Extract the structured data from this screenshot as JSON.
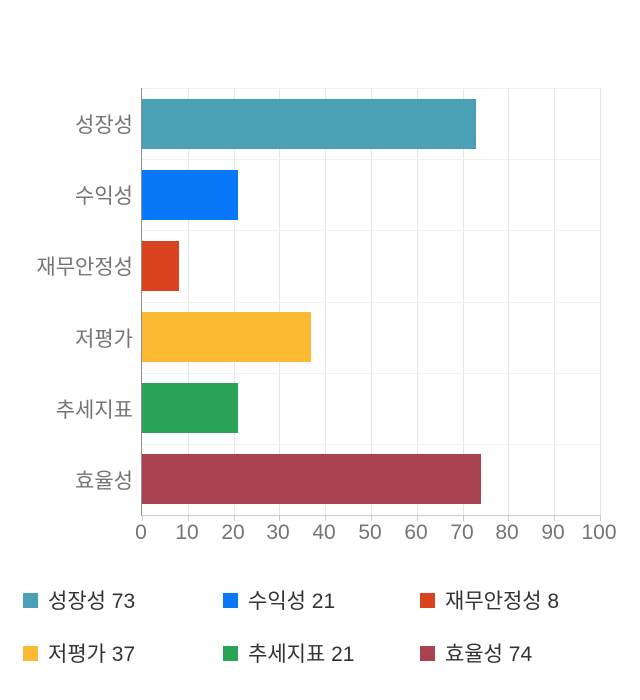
{
  "chart_data": {
    "type": "bar",
    "orientation": "horizontal",
    "title": "",
    "categories": [
      "성장성",
      "수익성",
      "재무안정성",
      "저평가",
      "추세지표",
      "효율성"
    ],
    "values": [
      73,
      21,
      8,
      37,
      21,
      74
    ],
    "bar_colors": [
      "#4AA0B5",
      "#0878F8",
      "#D9431F",
      "#FCB932",
      "#2AA457",
      "#A9424F"
    ],
    "xlim": [
      0,
      100
    ],
    "x_ticks": [
      0,
      10,
      20,
      30,
      40,
      50,
      60,
      70,
      80,
      90,
      100
    ],
    "grid": true,
    "legend_position": "bottom",
    "legend_items": [
      {
        "label": "성장성",
        "value": 73,
        "color": "#4AA0B5",
        "text": "성장성 73"
      },
      {
        "label": "수익성",
        "value": 21,
        "color": "#0878F8",
        "text": "수익성 21"
      },
      {
        "label": "재무안정성",
        "value": 8,
        "color": "#D9431F",
        "text": "재무안정성 8"
      },
      {
        "label": "저평가",
        "value": 37,
        "color": "#FCB932",
        "text": "저평가 37"
      },
      {
        "label": "추세지표",
        "value": 21,
        "color": "#2AA457",
        "text": "추세지표 21"
      },
      {
        "label": "효율성",
        "value": 74,
        "color": "#A9424F",
        "text": "효율성 74"
      }
    ]
  },
  "palette": {
    "background": "#ffffff",
    "axis_label_color": "#757575",
    "legend_text_color": "#333333",
    "gridline_color": "#e6e6e6",
    "row_line_color": "#f0f0f0",
    "baseline_color": "#8f8f8f",
    "axis_line_color": "#cccccc"
  }
}
